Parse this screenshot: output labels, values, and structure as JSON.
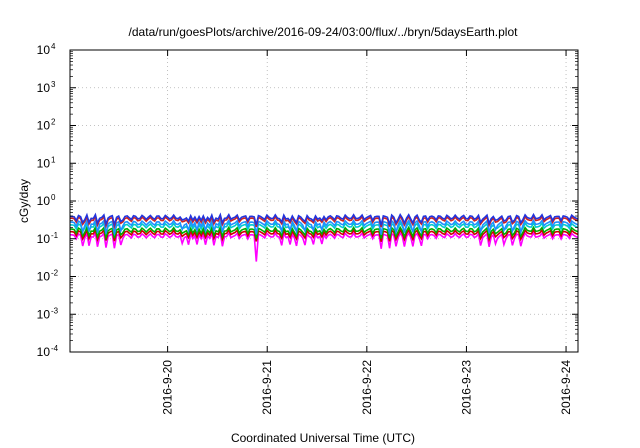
{
  "chart_data": {
    "type": "line",
    "title": "/data/run/goesPlots/archive/2016-09-24/03:00/flux/../bryn/5daysEarth.plot",
    "xlabel": "Coordinated Universal Time (UTC)",
    "ylabel": "cGy/day",
    "yscale": "log",
    "ylim": [
      0.0001,
      10000
    ],
    "xlim": [
      0,
      5.1
    ],
    "x_ticks": [
      {
        "value": 0.98,
        "label": "2016-9-20"
      },
      {
        "value": 1.98,
        "label": "2016-9-21"
      },
      {
        "value": 2.98,
        "label": "2016-9-22"
      },
      {
        "value": 3.98,
        "label": "2016-9-23"
      },
      {
        "value": 4.98,
        "label": "2016-9-24"
      }
    ],
    "y_ticks": [
      {
        "value": 0.0001,
        "base": "10",
        "exp": "-4"
      },
      {
        "value": 0.001,
        "base": "10",
        "exp": "-3"
      },
      {
        "value": 0.01,
        "base": "10",
        "exp": "-2"
      },
      {
        "value": 0.1,
        "base": "10",
        "exp": "-1"
      },
      {
        "value": 1,
        "base": "10",
        "exp": "0"
      },
      {
        "value": 10,
        "base": "10",
        "exp": "1"
      },
      {
        "value": 100,
        "base": "10",
        "exp": "2"
      },
      {
        "value": 1000,
        "base": "10",
        "exp": "3"
      },
      {
        "value": 10000,
        "base": "10",
        "exp": "4"
      }
    ],
    "grid": true,
    "legend": "none",
    "series": [
      {
        "color": "#ff00ff",
        "base": 0.12,
        "dip_factor": 0.55
      },
      {
        "color": "#cc0000",
        "base": 0.145,
        "dip_factor": 0.7
      },
      {
        "color": "#00aa00",
        "base": 0.17,
        "dip_factor": 0.72
      },
      {
        "color": "#00cccc",
        "base": 0.22,
        "dip_factor": 0.75
      },
      {
        "color": "#1e90ff",
        "base": 0.26,
        "dip_factor": 0.6
      },
      {
        "color": "#cc2222",
        "base": 0.33,
        "dip_factor": 0.75
      },
      {
        "color": "#2233dd",
        "base": 0.37,
        "dip_factor": 0.75
      }
    ]
  }
}
